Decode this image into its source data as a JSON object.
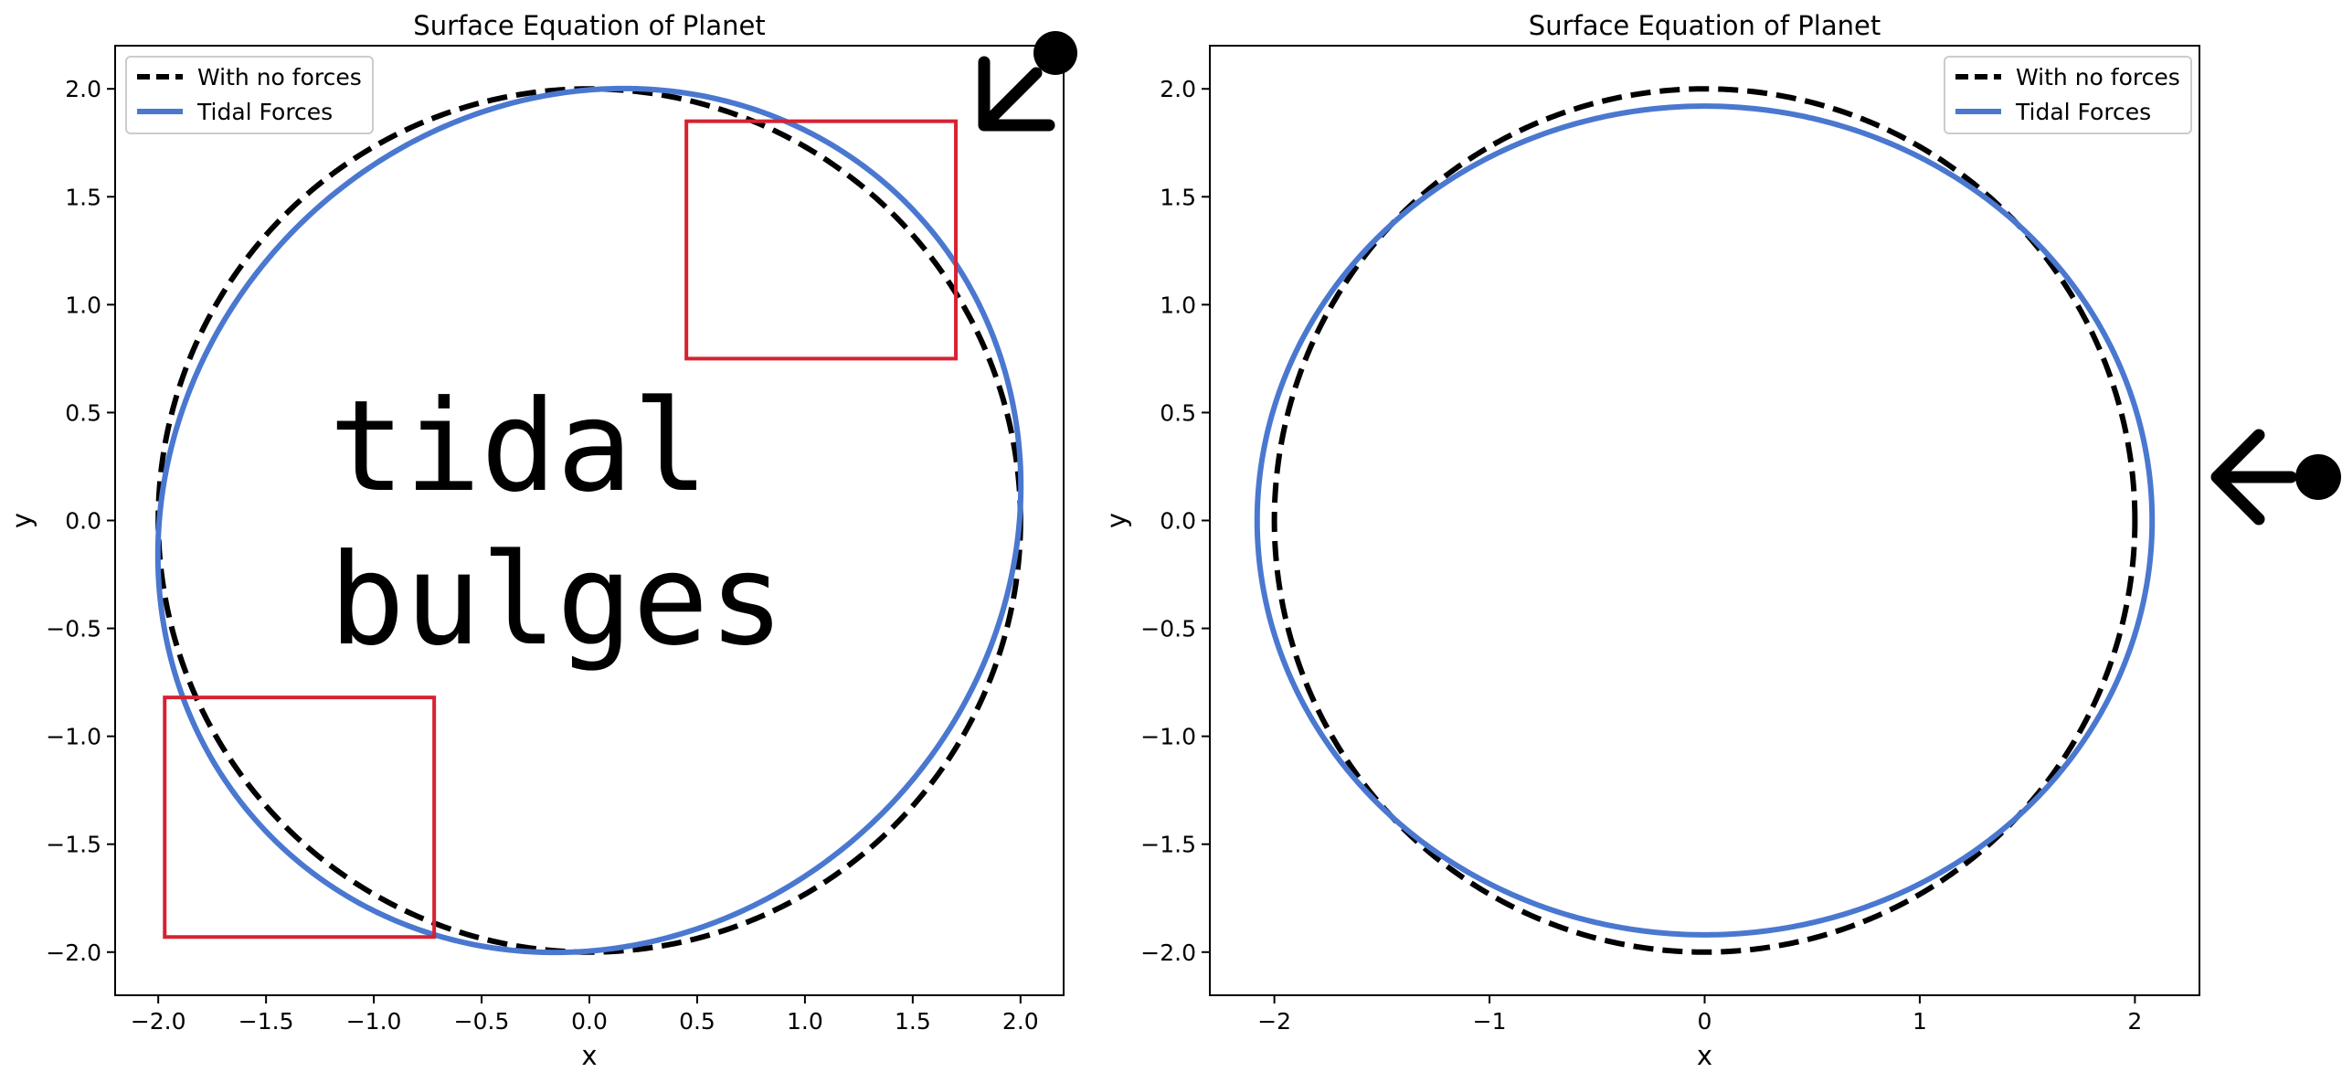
{
  "chart_data": [
    {
      "type": "line",
      "title": "Surface Equation of Planet",
      "xlabel": "x",
      "ylabel": "y",
      "xlim": [
        -2.2,
        2.2
      ],
      "ylim": [
        -2.2,
        2.2
      ],
      "xticks": [
        -2.0,
        -1.5,
        -1.0,
        -0.5,
        0.0,
        0.5,
        1.0,
        1.5,
        2.0
      ],
      "xtick_labels": [
        "−2.0",
        "−1.5",
        "−1.0",
        "−0.5",
        "0.0",
        "0.5",
        "1.0",
        "1.5",
        "2.0"
      ],
      "yticks": [
        2.0,
        1.5,
        1.0,
        0.5,
        0.0,
        -0.5,
        -1.0,
        -1.5,
        -2.0
      ],
      "ytick_labels": [
        "2.0",
        "1.5",
        "1.0",
        "0.5",
        "0.0",
        "−0.5",
        "−1.0",
        "−1.5",
        "−2.0"
      ],
      "grid": false,
      "legend_position": "top-left",
      "series": [
        {
          "name": "With no forces",
          "shape": "circle",
          "radius": 2.0,
          "color": "#000000",
          "style": "dashed"
        },
        {
          "name": "Tidal Forces",
          "shape": "ellipse",
          "semi_major": 2.08,
          "semi_minor": 1.92,
          "rotation_deg": 45,
          "color": "#4a78d0",
          "style": "solid"
        }
      ],
      "highlight_boxes": [
        {
          "x": [
            0.45,
            1.7
          ],
          "y": [
            0.75,
            1.85
          ],
          "color": "#d62232"
        },
        {
          "x": [
            -1.97,
            -0.72
          ],
          "y": [
            -1.93,
            -0.82
          ],
          "color": "#d62232"
        }
      ],
      "annotation": {
        "lines": [
          "tidal",
          "bulges"
        ]
      },
      "force_arrow": {
        "direction": "from top-right"
      }
    },
    {
      "type": "line",
      "title": "Surface Equation of Planet",
      "xlabel": "x",
      "ylabel": "y",
      "xlim": [
        -2.3,
        2.3
      ],
      "ylim": [
        -2.2,
        2.2
      ],
      "xticks": [
        -2,
        -1,
        0,
        1,
        2
      ],
      "xtick_labels": [
        "−2",
        "−1",
        "0",
        "1",
        "2"
      ],
      "yticks": [
        2.0,
        1.5,
        1.0,
        0.5,
        0.0,
        -0.5,
        -1.0,
        -1.5,
        -2.0
      ],
      "ytick_labels": [
        "2.0",
        "1.5",
        "1.0",
        "0.5",
        "0.0",
        "−0.5",
        "−1.0",
        "−1.5",
        "−2.0"
      ],
      "grid": false,
      "legend_position": "top-right",
      "series": [
        {
          "name": "With no forces",
          "shape": "circle",
          "radius": 2.0,
          "color": "#000000",
          "style": "dashed"
        },
        {
          "name": "Tidal Forces",
          "shape": "ellipse",
          "semi_major": 2.08,
          "semi_minor": 1.92,
          "rotation_deg": 0,
          "color": "#4a78d0",
          "style": "solid"
        }
      ],
      "highlight_boxes": [],
      "force_arrow": {
        "direction": "from right"
      }
    }
  ]
}
